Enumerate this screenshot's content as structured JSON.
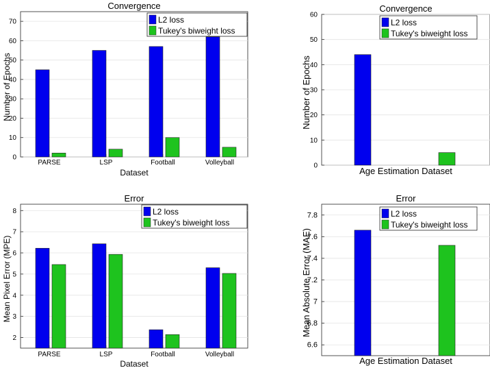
{
  "colors": {
    "l2": "#0000ee",
    "tukey": "#1ec31e"
  },
  "chart_data": [
    {
      "type": "bar",
      "title": "Convergence",
      "xlabel": "Dataset",
      "ylabel": "Number of Epochs",
      "categories": [
        "PARSE",
        "LSP",
        "Football",
        "Volleyball"
      ],
      "series": [
        {
          "name": "L2 loss",
          "values": [
            45,
            55,
            57,
            62
          ]
        },
        {
          "name": "Tukey's biweight loss",
          "values": [
            2,
            4,
            10,
            5
          ]
        }
      ],
      "ylim": [
        0,
        75
      ],
      "yticks": [
        0,
        10,
        20,
        30,
        40,
        50,
        60,
        70
      ],
      "ytick_labels": [
        "0",
        "10",
        "20",
        "30",
        "40",
        "50",
        "60",
        "70"
      ],
      "grid": true,
      "legend": "top-right"
    },
    {
      "type": "bar",
      "title": "Convergence",
      "xlabel": "Age Estimation Dataset",
      "ylabel": "Number of Epochs",
      "categories": [
        ""
      ],
      "series": [
        {
          "name": "L2 loss",
          "values": [
            44
          ]
        },
        {
          "name": "Tukey's biweight loss",
          "values": [
            5
          ]
        }
      ],
      "ylim": [
        0,
        60
      ],
      "yticks": [
        0,
        10,
        20,
        30,
        40,
        50,
        60
      ],
      "ytick_labels": [
        "0",
        "10",
        "20",
        "30",
        "40",
        "50",
        "60"
      ],
      "grid": true,
      "legend": "top-right"
    },
    {
      "type": "bar",
      "title": "Error",
      "xlabel": "Dataset",
      "ylabel": "Mean Pixel Error (MPE)",
      "categories": [
        "PARSE",
        "LSP",
        "Football",
        "Volleyball"
      ],
      "series": [
        {
          "name": "L2 loss",
          "values": [
            6.22,
            6.43,
            2.37,
            5.3
          ]
        },
        {
          "name": "Tukey's biweight loss",
          "values": [
            5.45,
            5.93,
            2.14,
            5.03
          ]
        }
      ],
      "ylim": [
        1.5,
        8.3
      ],
      "yticks": [
        2,
        3,
        4,
        5,
        6,
        7,
        8
      ],
      "ytick_labels": [
        "2",
        "3",
        "4",
        "5",
        "6",
        "7",
        "8"
      ],
      "grid": true,
      "legend": "top-right"
    },
    {
      "type": "bar",
      "title": "Error",
      "xlabel": "Age Estimation Dataset",
      "ylabel": "Mean Absolute Error (MAE)",
      "categories": [
        ""
      ],
      "series": [
        {
          "name": "L2 loss",
          "values": [
            7.66
          ]
        },
        {
          "name": "Tukey's biweight loss",
          "values": [
            7.52
          ]
        }
      ],
      "ylim": [
        6.5,
        7.9
      ],
      "yticks": [
        6.6,
        6.8,
        7.0,
        7.2,
        7.4,
        7.6,
        7.8
      ],
      "ytick_labels": [
        "6.6",
        "6.8",
        "7",
        "7.2",
        "7.4",
        "7.6",
        "7.8"
      ],
      "grid": true,
      "legend": "top-right"
    }
  ]
}
